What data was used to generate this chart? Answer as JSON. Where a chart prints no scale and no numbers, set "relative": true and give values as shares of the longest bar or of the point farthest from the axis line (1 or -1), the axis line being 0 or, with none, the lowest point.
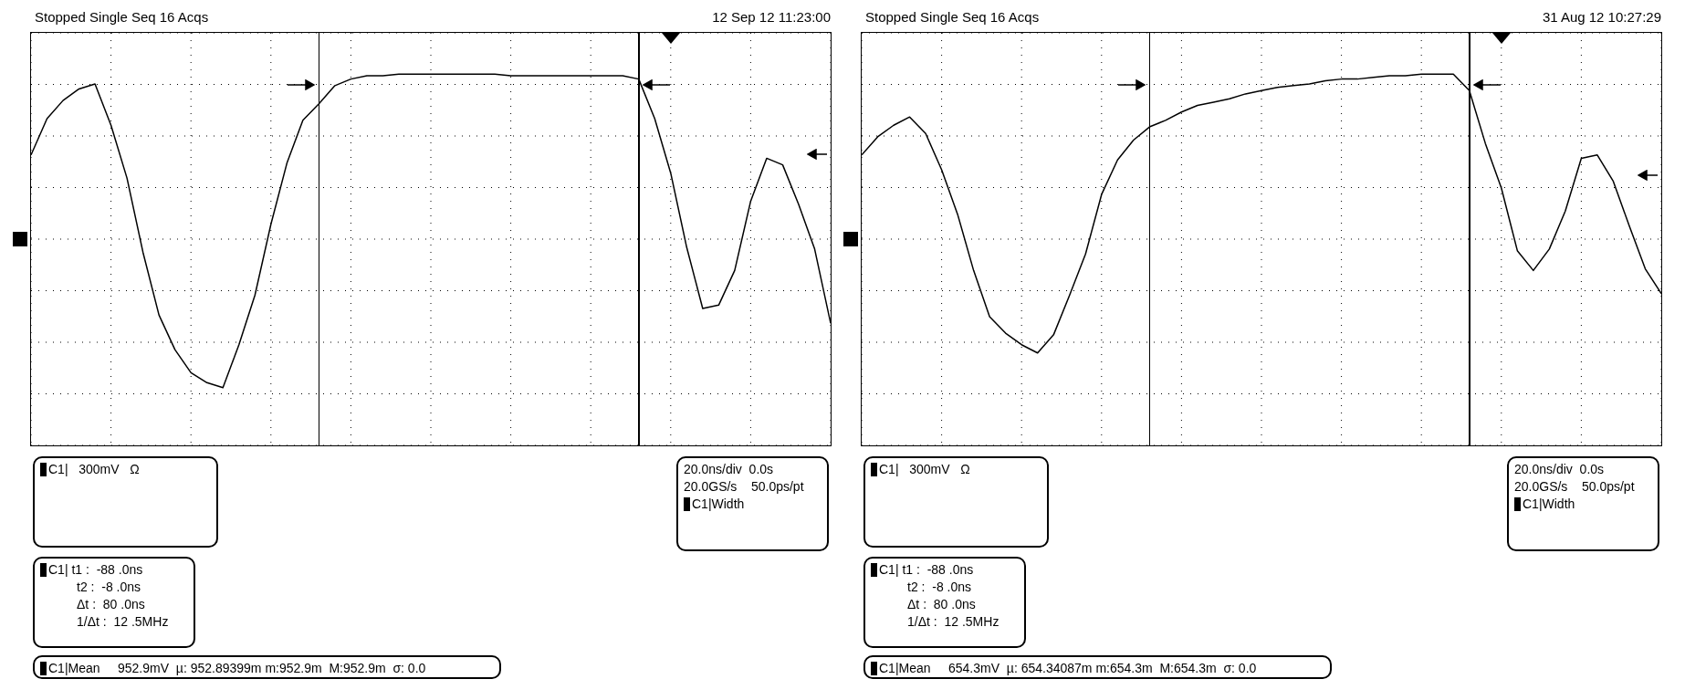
{
  "chart_data": [
    {
      "type": "line",
      "title": "Stopped Single Seq 16 Acqs",
      "subtitle": "12 Sep 12 11:23:00",
      "relative": true,
      "categories": [
        null,
        null,
        null,
        null,
        null,
        null,
        null,
        null,
        null,
        null,
        null,
        null,
        null,
        null,
        null,
        null,
        null,
        null,
        null,
        null,
        null,
        null,
        null,
        null,
        null,
        null,
        null,
        null,
        null,
        null,
        null,
        null,
        null,
        null,
        null,
        null,
        null,
        null,
        null,
        null,
        null,
        null,
        null,
        null,
        null,
        null,
        null,
        null,
        null,
        null,
        null
      ],
      "series": [
        {
          "color": "#000000",
          "values": [
            0.51,
            0.73,
            0.84,
            0.91,
            0.94,
            0.69,
            0.37,
            -0.08,
            -0.46,
            -0.67,
            -0.81,
            -0.87,
            -0.9,
            -0.64,
            -0.34,
            0.09,
            0.46,
            0.72,
            0.82,
            0.93,
            0.97,
            0.99,
            0.99,
            1,
            1,
            1,
            1,
            1,
            1,
            1,
            0.99,
            0.99,
            0.99,
            0.99,
            0.99,
            0.99,
            0.99,
            0.99,
            0.97,
            0.73,
            0.4,
            -0.05,
            -0.42,
            -0.4,
            -0.19,
            0.23,
            0.49,
            0.45,
            0.21,
            -0.06,
            -0.51
          ]
        }
      ],
      "grid": true,
      "marker": "none",
      "line_style": "solid",
      "annotations": [
        "C1|   300mV   Ω",
        "C1| t1 :  -88 .0ns\nt2 :  -8 .0ns\nΔt :  80 .0ns\n1/Δt :  12 .5MHz",
        "C1|Mean     952.9mV  µ: 952.89399m m:952.9m  M:952.9m  σ: 0.0",
        "20.0ns/div  0.0s\n20.0GS/s    50.0ps/pt\nC1|Width"
      ]
    },
    {
      "type": "line",
      "title": "Stopped Single Seq 16 Acqs",
      "subtitle": "31 Aug 12 10:27:29",
      "relative": true,
      "categories": [
        null,
        null,
        null,
        null,
        null,
        null,
        null,
        null,
        null,
        null,
        null,
        null,
        null,
        null,
        null,
        null,
        null,
        null,
        null,
        null,
        null,
        null,
        null,
        null,
        null,
        null,
        null,
        null,
        null,
        null,
        null,
        null,
        null,
        null,
        null,
        null,
        null,
        null,
        null,
        null,
        null,
        null,
        null,
        null,
        null,
        null,
        null,
        null,
        null,
        null,
        null
      ],
      "series": [
        {
          "color": "#000000",
          "values": [
            0.51,
            0.62,
            0.69,
            0.74,
            0.64,
            0.42,
            0.15,
            -0.19,
            -0.47,
            -0.57,
            -0.64,
            -0.69,
            -0.58,
            -0.34,
            -0.09,
            0.27,
            0.48,
            0.6,
            0.68,
            0.72,
            0.77,
            0.81,
            0.83,
            0.85,
            0.88,
            0.9,
            0.92,
            0.93,
            0.94,
            0.96,
            0.97,
            0.97,
            0.98,
            0.99,
            0.99,
            1,
            1,
            1,
            0.9,
            0.58,
            0.31,
            -0.07,
            -0.19,
            -0.06,
            0.17,
            0.49,
            0.51,
            0.35,
            0.08,
            -0.18,
            -0.33
          ]
        }
      ],
      "grid": true,
      "marker": "none",
      "line_style": "solid",
      "annotations": [
        "C1|   300mV   Ω",
        "C1| t1 :  -88 .0ns\nt2 :  -8 .0ns\nΔt :  80 .0ns\n1/Δt :  12 .5MHz",
        "C1|Mean     654.3mV  µ: 654.34087m m:654.3m  M:654.3m  σ: 0.0",
        "20.0ns/div  0.0s\n20.0GS/s    50.0ps/pt\nC1|Width"
      ]
    }
  ]
}
